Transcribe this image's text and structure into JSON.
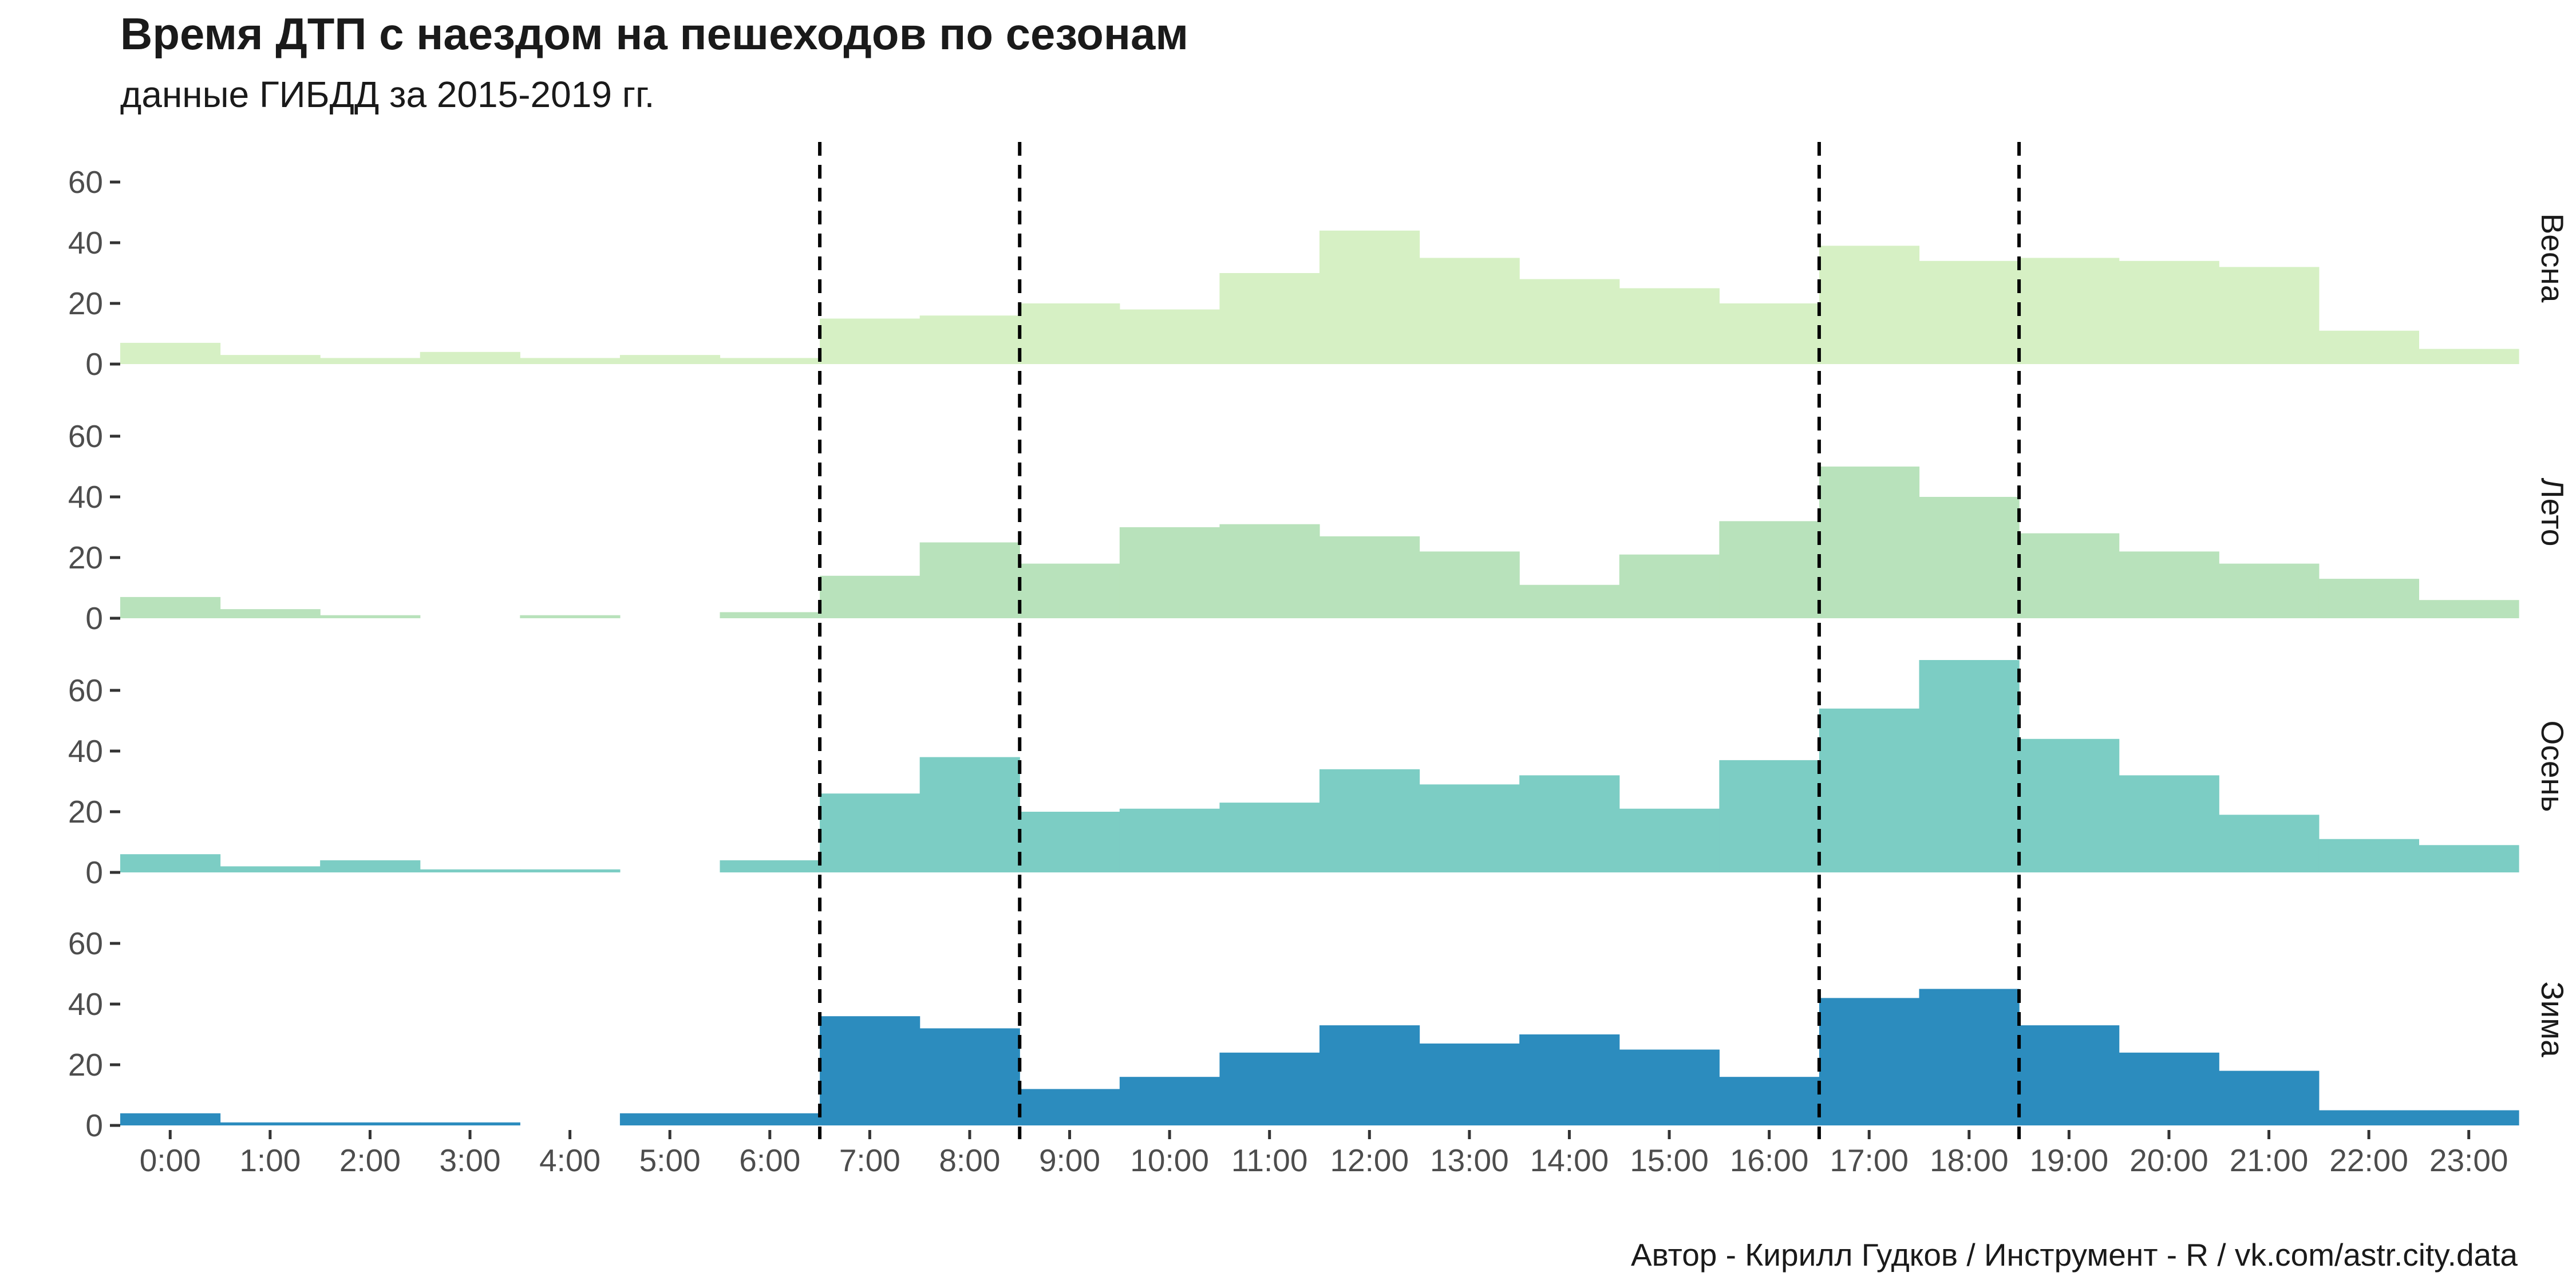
{
  "title": "Время ДТП с наездом на пешеходов по сезонам",
  "subtitle": "данные ГИБДД за 2015-2019 гг.",
  "caption": "Автор - Кирилл Гудков / Инструмент - R / vk.com/astr.city.data",
  "chart_data": {
    "type": "bar",
    "categories": [
      "0:00",
      "1:00",
      "2:00",
      "3:00",
      "4:00",
      "5:00",
      "6:00",
      "7:00",
      "8:00",
      "9:00",
      "10:00",
      "11:00",
      "12:00",
      "13:00",
      "14:00",
      "15:00",
      "16:00",
      "17:00",
      "18:00",
      "19:00",
      "20:00",
      "21:00",
      "22:00",
      "23:00"
    ],
    "y_ticks": [
      0,
      20,
      40,
      60
    ],
    "ylim": [
      0,
      70
    ],
    "grid": false,
    "reference_lines_x": [
      6.5,
      8.5,
      16.5,
      18.5
    ],
    "facets": [
      {
        "name": "Весна",
        "color": "#d6f0c4",
        "values": [
          7,
          3,
          2,
          4,
          2,
          3,
          2,
          15,
          16,
          20,
          18,
          30,
          44,
          35,
          28,
          25,
          20,
          39,
          34,
          35,
          34,
          32,
          11,
          5
        ]
      },
      {
        "name": "Лето",
        "color": "#b8e2bb",
        "values": [
          7,
          3,
          1,
          0,
          1,
          0,
          2,
          14,
          25,
          18,
          30,
          31,
          27,
          22,
          11,
          21,
          32,
          50,
          40,
          28,
          22,
          18,
          13,
          6
        ]
      },
      {
        "name": "Осень",
        "color": "#7ccdc4",
        "values": [
          6,
          2,
          4,
          1,
          1,
          0,
          4,
          26,
          38,
          20,
          21,
          23,
          34,
          29,
          32,
          21,
          37,
          54,
          70,
          44,
          32,
          19,
          11,
          9
        ]
      },
      {
        "name": "Зима",
        "color": "#2c8cbe",
        "values": [
          4,
          1,
          1,
          1,
          0,
          4,
          4,
          36,
          32,
          12,
          16,
          24,
          33,
          27,
          30,
          25,
          16,
          42,
          45,
          33,
          24,
          18,
          5,
          5
        ]
      }
    ]
  }
}
